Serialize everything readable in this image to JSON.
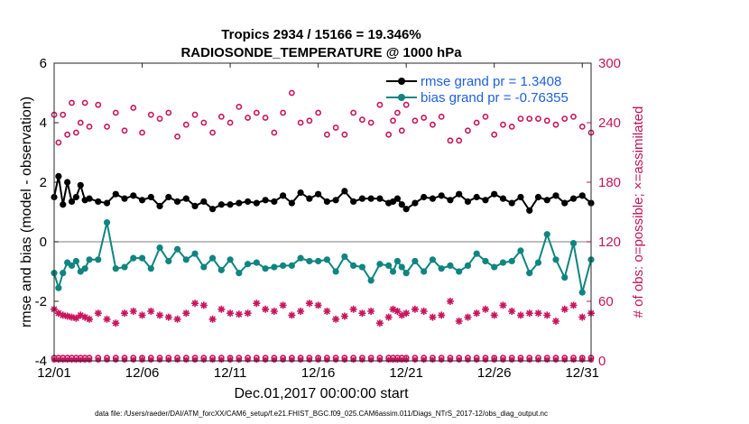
{
  "chart_data": {
    "type": "line",
    "title": "Tropics 2934 / 15166 = 19.346%",
    "subtitle": "RADIOSONDE_TEMPERATURE @ 1000 hPa",
    "xlabel": "Dec.01,2017 00:00:00 start",
    "ylabel": "rmse and bias (model - observation)",
    "ylabel_right": "# of obs: o=possible; ×=assimilated",
    "footnote": "data file: /Users/raeder/DAI/ATM_forcXX/CAM6_setup/f.e21.FHIST_BGC.f09_025.CAM6assim.011/Diags_NTrS_2017-12/obs_diag_output.nc",
    "xlim": [
      0,
      30.5
    ],
    "ylim": [
      -4,
      6
    ],
    "ylim_right": [
      0,
      300
    ],
    "xticks": [
      0,
      5,
      10,
      15,
      20,
      25,
      30
    ],
    "xtick_labels": [
      "12/01",
      "12/06",
      "12/11",
      "12/16",
      "12/21",
      "12/26",
      "12/31"
    ],
    "yticks": [
      -4,
      -2,
      0,
      2,
      4,
      6
    ],
    "ytick_labels": [
      "-4",
      "-2",
      "0",
      "2",
      "4",
      "6"
    ],
    "yticks_right": [
      0,
      60,
      120,
      180,
      240,
      300
    ],
    "ytick_labels_right": [
      "0",
      "60",
      "120",
      "180",
      "240",
      "300"
    ],
    "zero_line": 0,
    "colors": {
      "rmse": "#000000",
      "bias": "#10857f",
      "obs": "#c8155e",
      "legend_text": "#1f5fe0",
      "zero_line": "#999999"
    },
    "legend": [
      {
        "name": "rmse",
        "label": "rmse grand pr = 1.3408"
      },
      {
        "name": "bias",
        "label": "bias grand pr = -0.76355"
      }
    ],
    "series": [
      {
        "name": "rmse",
        "axis": "left",
        "style": "line-marker",
        "x": [
          0,
          0.25,
          0.5,
          0.75,
          1,
          1.25,
          1.5,
          1.75,
          2,
          2.5,
          3,
          3.5,
          4,
          4.5,
          5,
          5.5,
          6,
          6.5,
          7,
          7.5,
          8,
          8.5,
          9,
          9.5,
          10,
          10.5,
          11,
          11.5,
          12,
          12.5,
          13,
          13.5,
          14,
          14.5,
          15,
          15.5,
          16,
          16.5,
          17,
          17.5,
          18,
          18.5,
          19,
          19.25,
          19.5,
          19.75,
          20,
          20.5,
          21,
          21.5,
          22,
          22.5,
          23,
          23.5,
          24,
          24.5,
          25,
          25.5,
          26,
          26.5,
          27,
          27.5,
          28,
          28.5,
          29,
          29.5,
          30,
          30.5
        ],
        "values": [
          1.5,
          2.2,
          1.25,
          2.0,
          1.35,
          1.5,
          1.9,
          1.4,
          1.45,
          1.35,
          1.3,
          1.6,
          1.45,
          1.55,
          1.4,
          1.5,
          1.2,
          1.5,
          1.35,
          1.45,
          1.2,
          1.35,
          1.1,
          1.25,
          1.25,
          1.3,
          1.35,
          1.3,
          1.4,
          1.35,
          1.55,
          1.3,
          1.65,
          1.45,
          1.6,
          1.35,
          1.4,
          1.7,
          1.35,
          1.45,
          1.45,
          1.45,
          1.3,
          1.35,
          1.45,
          1.25,
          1.1,
          1.3,
          1.5,
          1.45,
          1.55,
          1.4,
          1.6,
          1.35,
          1.5,
          1.4,
          1.6,
          1.45,
          1.3,
          1.5,
          1.05,
          1.5,
          1.4,
          1.55,
          1.3,
          1.45,
          1.55,
          1.3
        ]
      },
      {
        "name": "bias",
        "axis": "left",
        "style": "line-marker",
        "x": [
          0,
          0.25,
          0.5,
          0.75,
          1,
          1.25,
          1.5,
          1.75,
          2,
          2.5,
          3,
          3.5,
          4,
          4.5,
          5,
          5.5,
          6,
          6.5,
          7,
          7.5,
          8,
          8.5,
          9,
          9.5,
          10,
          10.5,
          11,
          11.5,
          12,
          12.5,
          13,
          13.5,
          14,
          14.5,
          15,
          15.5,
          16,
          16.5,
          17,
          17.5,
          18,
          18.5,
          19,
          19.25,
          19.5,
          19.75,
          20,
          20.5,
          21,
          21.5,
          22,
          22.5,
          23,
          23.5,
          24,
          24.5,
          25,
          25.5,
          26,
          26.5,
          27,
          27.5,
          28,
          28.5,
          29,
          29.5,
          30,
          30.5
        ],
        "values": [
          -1.05,
          -1.55,
          -1.05,
          -0.7,
          -0.8,
          -0.65,
          -1.0,
          -0.9,
          -0.6,
          -0.6,
          0.65,
          -0.9,
          -0.85,
          -0.55,
          -0.55,
          -0.9,
          -0.2,
          -0.65,
          -0.25,
          -0.6,
          -0.4,
          -0.85,
          -0.55,
          -0.95,
          -0.6,
          -1.05,
          -0.75,
          -0.7,
          -0.9,
          -0.85,
          -0.8,
          -0.8,
          -0.55,
          -0.65,
          -0.65,
          -0.6,
          -1.0,
          -0.5,
          -0.8,
          -0.85,
          -1.3,
          -0.75,
          -0.8,
          -1.0,
          -0.65,
          -0.85,
          -1.05,
          -0.65,
          -1.0,
          -0.6,
          -0.9,
          -0.8,
          -1.0,
          -0.8,
          -0.4,
          -0.65,
          -0.85,
          -0.7,
          -0.65,
          -0.3,
          -1.05,
          -0.7,
          0.25,
          -0.6,
          -1.2,
          -0.05,
          -1.7,
          -0.6
        ]
      },
      {
        "name": "possible",
        "axis": "right",
        "style": "marker-circle",
        "x": [
          0,
          0.25,
          0.5,
          0.75,
          1,
          1.25,
          1.5,
          1.75,
          2,
          2.5,
          3,
          3.5,
          4,
          4.5,
          5,
          5.5,
          6,
          6.5,
          7,
          7.5,
          8,
          8.5,
          9,
          9.5,
          10,
          10.5,
          11,
          11.5,
          12,
          12.5,
          13,
          13.5,
          14,
          14.5,
          15,
          15.5,
          16,
          16.5,
          17,
          17.5,
          18,
          18.5,
          19,
          19.25,
          19.5,
          19.75,
          20,
          20.5,
          21,
          21.5,
          22,
          22.5,
          23,
          23.5,
          24,
          24.5,
          25,
          25.5,
          26,
          26.5,
          27,
          27.5,
          28,
          28.5,
          29,
          29.5,
          30,
          30.5
        ],
        "values": [
          248,
          220,
          248,
          228,
          260,
          230,
          240,
          260,
          236,
          258,
          236,
          250,
          232,
          255,
          230,
          248,
          244,
          250,
          226,
          238,
          248,
          240,
          230,
          246,
          240,
          256,
          245,
          250,
          245,
          230,
          250,
          270,
          240,
          242,
          250,
          228,
          235,
          228,
          250,
          243,
          240,
          258,
          228,
          242,
          250,
          232,
          258,
          242,
          245,
          238,
          246,
          222,
          222,
          232,
          240,
          246,
          228,
          238,
          236,
          244,
          244,
          244,
          242,
          238,
          244,
          246,
          236,
          230
        ]
      },
      {
        "name": "assimilated",
        "axis": "right",
        "style": "marker-star",
        "x": [
          0,
          0.25,
          0.5,
          0.75,
          1,
          1.25,
          1.5,
          1.75,
          2,
          2.5,
          3,
          3.5,
          4,
          4.5,
          5,
          5.5,
          6,
          6.5,
          7,
          7.5,
          8,
          8.5,
          9,
          9.5,
          10,
          10.5,
          11,
          11.5,
          12,
          12.5,
          13,
          13.5,
          14,
          14.5,
          15,
          15.5,
          16,
          16.5,
          17,
          17.5,
          18,
          18.5,
          19,
          19.25,
          19.5,
          19.75,
          20,
          20.5,
          21,
          21.5,
          22,
          22.5,
          23,
          23.5,
          24,
          24.5,
          25,
          25.5,
          26,
          26.5,
          27,
          27.5,
          28,
          28.5,
          29,
          29.5,
          30,
          30.5
        ],
        "values": [
          52,
          48,
          46,
          45,
          44,
          43,
          46,
          44,
          42,
          48,
          42,
          38,
          48,
          50,
          46,
          50,
          46,
          44,
          42,
          48,
          58,
          56,
          42,
          52,
          48,
          47,
          48,
          58,
          52,
          50,
          56,
          46,
          50,
          58,
          56,
          50,
          42,
          45,
          52,
          48,
          50,
          38,
          44,
          52,
          50,
          46,
          48,
          52,
          50,
          44,
          46,
          60,
          40,
          44,
          48,
          52,
          46,
          56,
          50,
          46,
          48,
          48,
          46,
          40,
          52,
          56,
          44,
          48
        ]
      }
    ]
  }
}
